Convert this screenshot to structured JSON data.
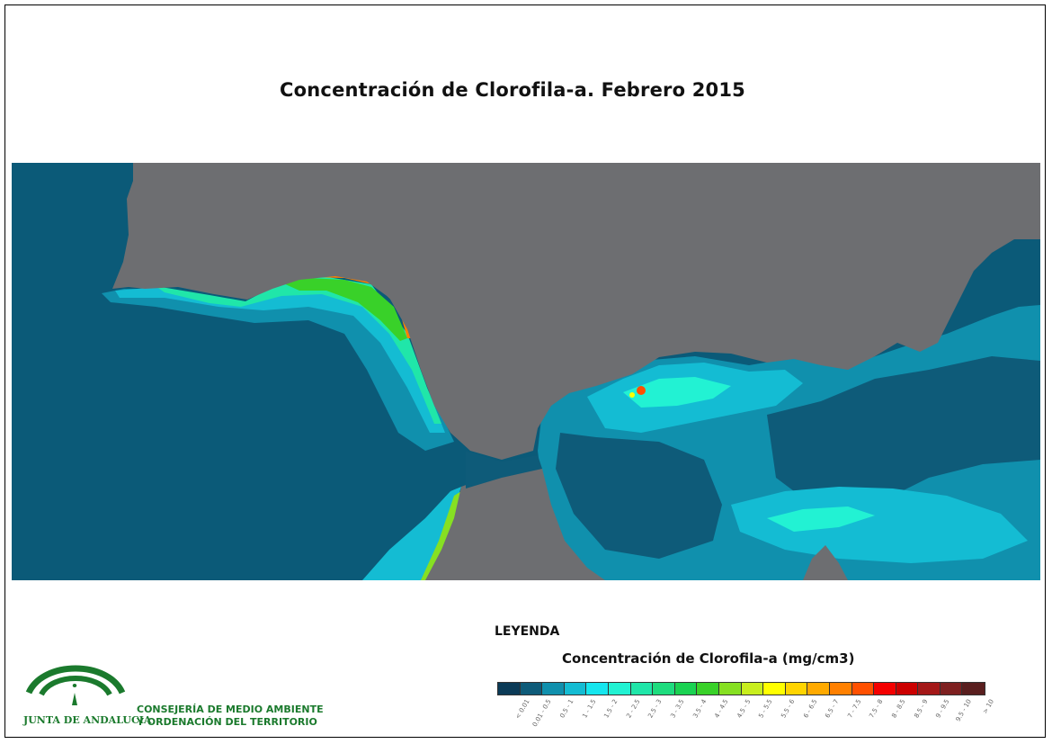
{
  "title": "Concentración de Clorofila-a. Febrero 2015",
  "map": {
    "land_color": "#6d6e71",
    "ocean_color": "#0b5a78",
    "features": [
      "land-mass-north",
      "land-mass-south",
      "atlantic-ocean",
      "mediterranean-sea",
      "strait-channel"
    ]
  },
  "legend": {
    "title": "LEYENDA",
    "subtitle": "Concentración de Clorofila-a (mg/cm3)",
    "classes": [
      {
        "label": "< 0.01",
        "color": "#0b3b57"
      },
      {
        "label": "0.01 - 0.5",
        "color": "#0e5b79"
      },
      {
        "label": "0.5 - 1",
        "color": "#1090ad"
      },
      {
        "label": "1 - 1.5",
        "color": "#14bcd3"
      },
      {
        "label": "1.5 - 2",
        "color": "#16e6ee"
      },
      {
        "label": "2 - 2.5",
        "color": "#22f2d3"
      },
      {
        "label": "2.5 - 3",
        "color": "#20e6a9"
      },
      {
        "label": "3 - 3.5",
        "color": "#1edc7e"
      },
      {
        "label": "3.5 - 4",
        "color": "#1ad252"
      },
      {
        "label": "4 - 4.5",
        "color": "#39d129"
      },
      {
        "label": "4.5 - 5",
        "color": "#86e022"
      },
      {
        "label": "5 - 5.5",
        "color": "#c8ee1e"
      },
      {
        "label": "5.5 - 6",
        "color": "#ffff00"
      },
      {
        "label": "6 - 6.5",
        "color": "#ffd400"
      },
      {
        "label": "6.5 - 7",
        "color": "#ffaa00"
      },
      {
        "label": "7 - 7.5",
        "color": "#ff8000"
      },
      {
        "label": "7.5 - 8",
        "color": "#ff5000"
      },
      {
        "label": "8 - 8.5",
        "color": "#f50000"
      },
      {
        "label": "8.5 - 9",
        "color": "#cc0000"
      },
      {
        "label": "9 - 9.5",
        "color": "#a41818"
      },
      {
        "label": "9.5 - 10",
        "color": "#7e2020"
      },
      {
        "label": "> 10",
        "color": "#5a1f1f"
      }
    ]
  },
  "logo": {
    "name": "JUNTA DE ANDALUCIA",
    "department_line1": "CONSEJERÍA DE MEDIO AMBIENTE",
    "department_line2": "Y ORDENACIÓN DEL TERRITORIO",
    "color": "#1b7a2d"
  }
}
